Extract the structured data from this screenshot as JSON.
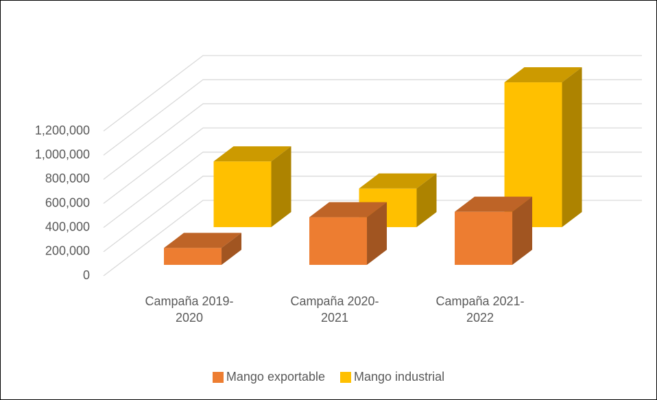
{
  "chart_data": {
    "type": "bar3d",
    "categories": [
      "Campaña 2019-2020",
      "Campaña 2020-2021",
      "Campaña 2021-2022"
    ],
    "series": [
      {
        "name": "Mango exportable",
        "color": "#ED7D31",
        "values": [
          140000,
          395000,
          440000
        ]
      },
      {
        "name": "Mango industrial",
        "color": "#FFC000",
        "values": [
          545000,
          320000,
          1200000
        ]
      }
    ],
    "ylim": [
      0,
      1200000
    ],
    "yticks": [
      0,
      {
        "value": 200000,
        "label": "200,000"
      },
      {
        "value": 400000,
        "label": "400,000"
      },
      {
        "value": 600000,
        "label": "600,000"
      },
      {
        "value": 800000,
        "label": "800,000"
      },
      {
        "value": 1000000,
        "label": "1,000,000"
      },
      {
        "value": 1200000,
        "label": "1,200,000"
      }
    ],
    "grid": true,
    "legend": "bottom"
  }
}
